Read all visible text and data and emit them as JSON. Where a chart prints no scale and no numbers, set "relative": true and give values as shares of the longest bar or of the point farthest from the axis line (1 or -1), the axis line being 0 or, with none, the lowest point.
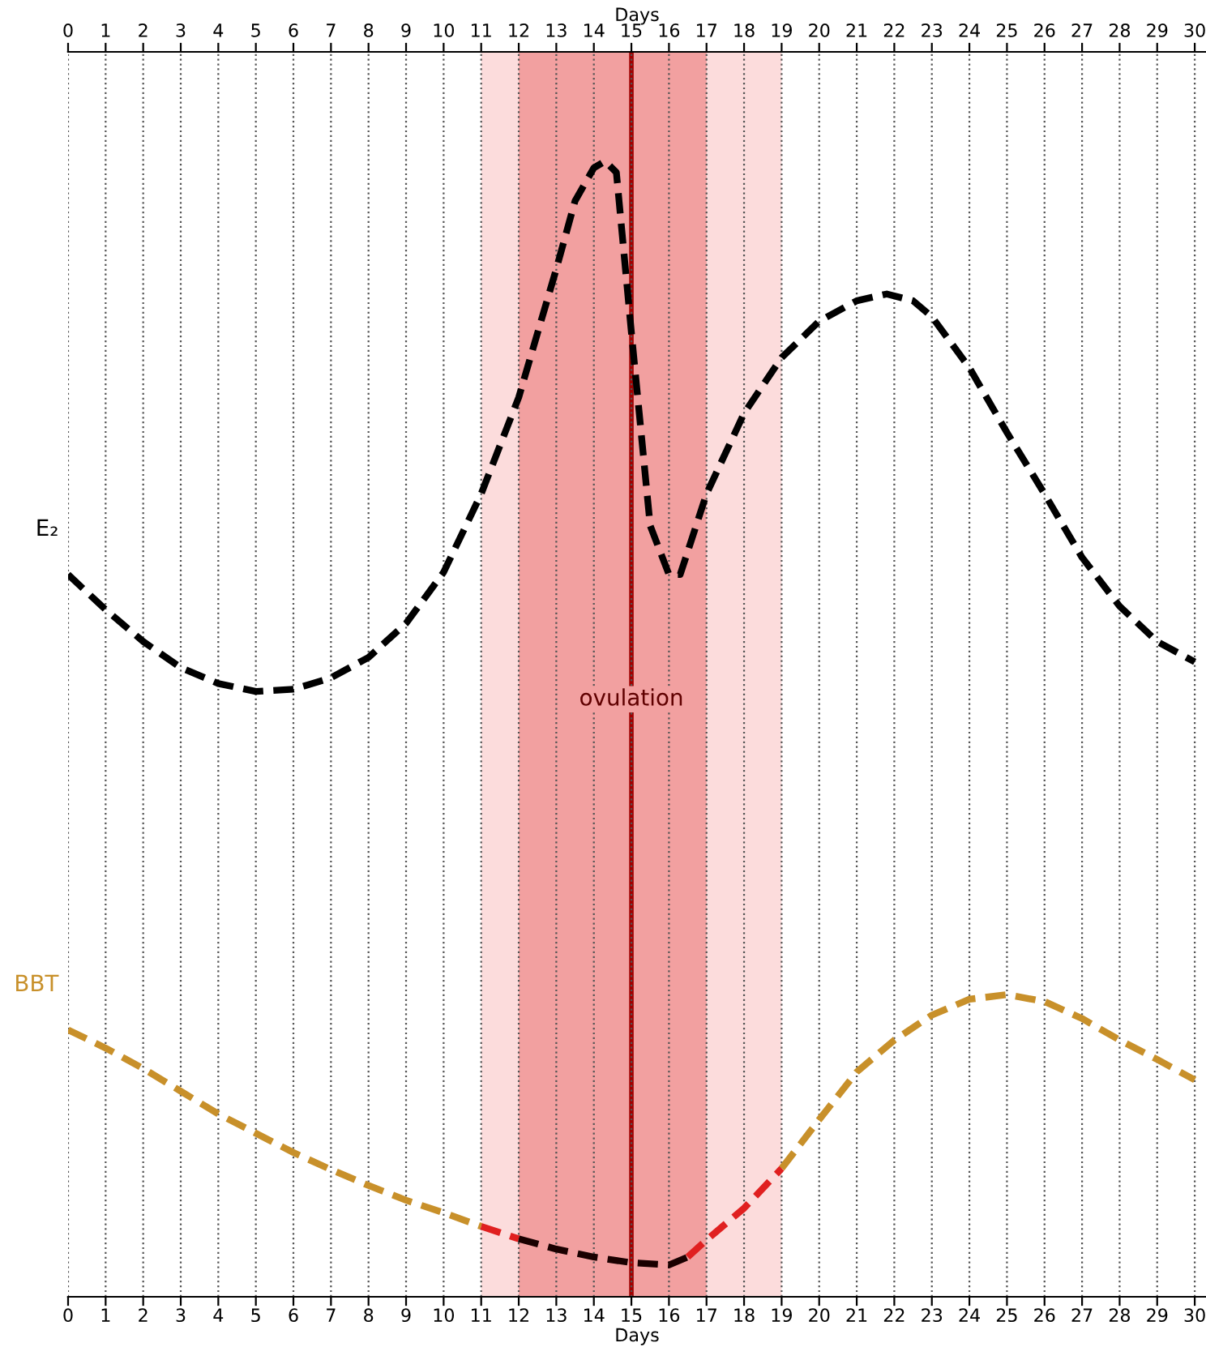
{
  "chart_data": {
    "type": "line",
    "relative": true,
    "xlabel": "Days",
    "x2label": "Days",
    "xlim": [
      0,
      30.3
    ],
    "x2lim": [
      0,
      30.3
    ],
    "xticks": [
      0,
      1,
      2,
      3,
      4,
      5,
      6,
      7,
      8,
      9,
      10,
      11,
      12,
      13,
      14,
      15,
      16,
      17,
      18,
      19,
      20,
      21,
      22,
      23,
      24,
      25,
      26,
      27,
      28,
      29,
      30
    ],
    "x2ticks": [
      0,
      1,
      2,
      3,
      4,
      5,
      6,
      7,
      8,
      9,
      10,
      11,
      12,
      13,
      14,
      15,
      16,
      17,
      18,
      19,
      20,
      21,
      22,
      23,
      24,
      25,
      26,
      27,
      28,
      29,
      30
    ],
    "grid": "x",
    "legend": false,
    "line_style": "dashed",
    "marker": "none",
    "tick_labels": "x",
    "bands": [
      {
        "axis": "x",
        "from": 11,
        "to": 19,
        "color": "#fcdcdc"
      },
      {
        "axis": "x",
        "from": 12,
        "to": 17,
        "color": "#f2a0a0"
      }
    ],
    "ref_lines": [
      {
        "axis": "x",
        "value": 15,
        "label": "ovulation",
        "color": "#a00000",
        "line_style": "solid"
      }
    ],
    "series": [
      {
        "name": "E₂",
        "color": "#000000",
        "x": [
          0,
          1,
          2,
          3,
          4,
          5,
          6,
          7,
          8,
          9,
          10,
          11,
          12,
          13,
          13.5,
          14,
          14.3,
          14.6,
          15,
          15.5,
          16,
          16.3,
          17,
          18,
          19,
          20,
          21,
          21.8,
          22.5,
          23,
          24,
          25,
          26,
          27,
          28,
          29,
          30
        ],
        "values": [
          0.636,
          0.605,
          0.577,
          0.554,
          0.54,
          0.533,
          0.535,
          0.545,
          0.563,
          0.593,
          0.638,
          0.707,
          0.792,
          0.905,
          0.965,
          0.994,
          1.0,
          0.99,
          0.849,
          0.679,
          0.636,
          0.636,
          0.707,
          0.778,
          0.827,
          0.859,
          0.877,
          0.883,
          0.877,
          0.863,
          0.818,
          0.761,
          0.707,
          0.651,
          0.608,
          0.577,
          0.559
        ]
      },
      {
        "name": "BBT",
        "color": "#c8902a",
        "x": [
          0,
          1,
          2,
          3,
          4,
          5,
          6,
          7,
          8,
          9,
          10,
          11,
          15,
          19,
          20,
          21,
          22,
          23,
          24,
          25,
          26,
          27,
          28,
          29,
          30
        ],
        "values": [
          0.235,
          0.219,
          0.201,
          0.181,
          0.161,
          0.144,
          0.127,
          0.112,
          0.098,
          0.085,
          0.074,
          0.062,
          null,
          0.113,
          0.156,
          0.198,
          0.226,
          0.248,
          0.262,
          0.266,
          0.26,
          0.245,
          0.226,
          0.209,
          0.191
        ]
      },
      {
        "color": "#e02020",
        "x": [
          11,
          12
        ],
        "values": [
          0.062,
          0.051
        ]
      },
      {
        "color": "#1a0000",
        "x": [
          12,
          13,
          14,
          15,
          16,
          16.5
        ],
        "values": [
          0.051,
          0.042,
          0.035,
          0.03,
          0.028,
          0.035
        ]
      },
      {
        "color": "#e02020",
        "x": [
          16.5,
          17,
          18,
          19
        ],
        "values": [
          0.035,
          0.05,
          0.078,
          0.113
        ]
      }
    ]
  }
}
